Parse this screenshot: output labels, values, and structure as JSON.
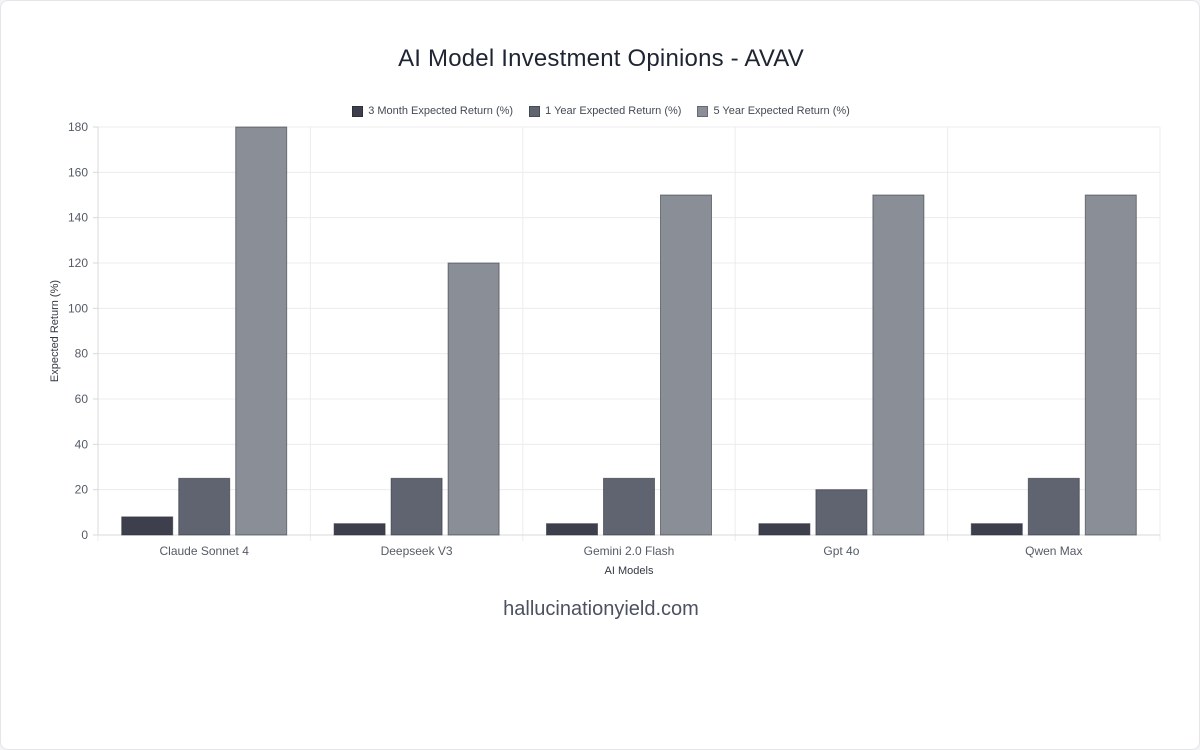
{
  "chart_data": {
    "type": "bar",
    "title": "AI Model Investment Opinions - AVAV",
    "xlabel": "AI Models",
    "ylabel": "Expected Return (%)",
    "ylim": [
      0,
      180
    ],
    "yticks": [
      0,
      20,
      40,
      60,
      80,
      100,
      120,
      140,
      160,
      180
    ],
    "grid": true,
    "legend_position": "top-center",
    "categories": [
      "Claude Sonnet 4",
      "Deepseek V3",
      "Gemini 2.0 Flash",
      "Gpt 4o",
      "Qwen Max"
    ],
    "series": [
      {
        "name": "3 Month Expected Return (%)",
        "color": "#3d404c",
        "values": [
          8,
          5,
          5,
          5,
          5
        ]
      },
      {
        "name": "1 Year Expected Return (%)",
        "color": "#5f6470",
        "values": [
          25,
          25,
          25,
          20,
          25
        ]
      },
      {
        "name": "5 Year Expected Return (%)",
        "color": "#8a8e97",
        "values": [
          180,
          120,
          150,
          150,
          150
        ]
      }
    ]
  },
  "watermark": "hallucinationyield.com"
}
